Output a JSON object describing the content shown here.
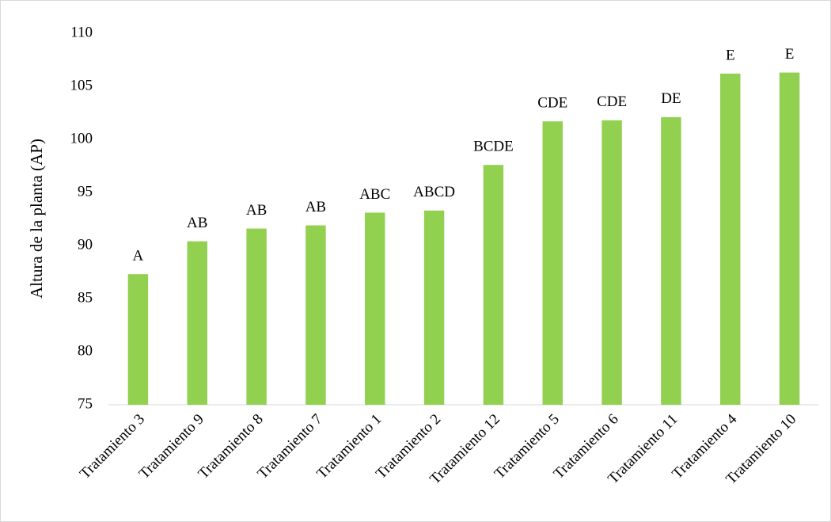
{
  "chart_data": {
    "type": "bar",
    "y_label": "Altura de la planta (AP)",
    "categories": [
      "Tratamiento 3",
      "Tratamiento 9",
      "Tratamiento 8",
      "Tratamiento 7",
      "Tratamiento 1",
      "Tratamiento 2",
      "Tratamiento 12",
      "Tratamiento 5",
      "Tratamiento 6",
      "Tratamiento 11",
      "Tratamiento 4",
      "Tratamiento 10"
    ],
    "values": [
      87.3,
      90.4,
      91.6,
      91.9,
      93.1,
      93.3,
      97.6,
      101.7,
      101.8,
      102.1,
      106.2,
      106.3
    ],
    "group_labels": [
      "A",
      "AB",
      "AB",
      "AB",
      "ABC",
      "ABCD",
      "BCDE",
      "CDE",
      "CDE",
      "DE",
      "E",
      "E"
    ],
    "color": "#92d050",
    "ylim": [
      75,
      110
    ],
    "yticks": [
      75,
      80,
      85,
      90,
      95,
      100,
      105,
      110
    ],
    "grid": false
  }
}
